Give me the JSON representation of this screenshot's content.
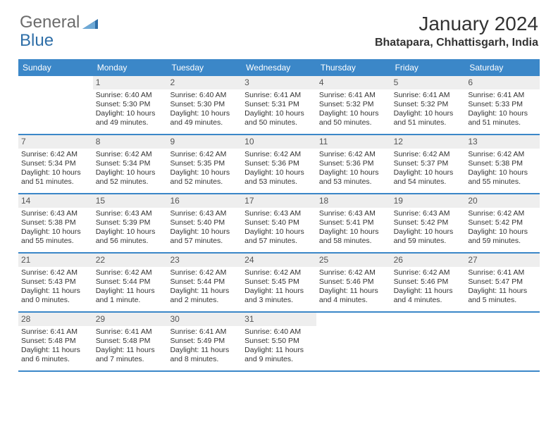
{
  "logo": {
    "text1": "General",
    "text2": "Blue"
  },
  "title": "January 2024",
  "location": "Bhatapara, Chhattisgarh, India",
  "header_bg": "#3b87c8",
  "daynames": [
    "Sunday",
    "Monday",
    "Tuesday",
    "Wednesday",
    "Thursday",
    "Friday",
    "Saturday"
  ],
  "cell_bg_daynum": "#eeeeee",
  "weeks": [
    [
      {
        "n": "",
        "lines": []
      },
      {
        "n": "1",
        "lines": [
          "Sunrise: 6:40 AM",
          "Sunset: 5:30 PM",
          "Daylight: 10 hours",
          "and 49 minutes."
        ]
      },
      {
        "n": "2",
        "lines": [
          "Sunrise: 6:40 AM",
          "Sunset: 5:30 PM",
          "Daylight: 10 hours",
          "and 49 minutes."
        ]
      },
      {
        "n": "3",
        "lines": [
          "Sunrise: 6:41 AM",
          "Sunset: 5:31 PM",
          "Daylight: 10 hours",
          "and 50 minutes."
        ]
      },
      {
        "n": "4",
        "lines": [
          "Sunrise: 6:41 AM",
          "Sunset: 5:32 PM",
          "Daylight: 10 hours",
          "and 50 minutes."
        ]
      },
      {
        "n": "5",
        "lines": [
          "Sunrise: 6:41 AM",
          "Sunset: 5:32 PM",
          "Daylight: 10 hours",
          "and 51 minutes."
        ]
      },
      {
        "n": "6",
        "lines": [
          "Sunrise: 6:41 AM",
          "Sunset: 5:33 PM",
          "Daylight: 10 hours",
          "and 51 minutes."
        ]
      }
    ],
    [
      {
        "n": "7",
        "lines": [
          "Sunrise: 6:42 AM",
          "Sunset: 5:34 PM",
          "Daylight: 10 hours",
          "and 51 minutes."
        ]
      },
      {
        "n": "8",
        "lines": [
          "Sunrise: 6:42 AM",
          "Sunset: 5:34 PM",
          "Daylight: 10 hours",
          "and 52 minutes."
        ]
      },
      {
        "n": "9",
        "lines": [
          "Sunrise: 6:42 AM",
          "Sunset: 5:35 PM",
          "Daylight: 10 hours",
          "and 52 minutes."
        ]
      },
      {
        "n": "10",
        "lines": [
          "Sunrise: 6:42 AM",
          "Sunset: 5:36 PM",
          "Daylight: 10 hours",
          "and 53 minutes."
        ]
      },
      {
        "n": "11",
        "lines": [
          "Sunrise: 6:42 AM",
          "Sunset: 5:36 PM",
          "Daylight: 10 hours",
          "and 53 minutes."
        ]
      },
      {
        "n": "12",
        "lines": [
          "Sunrise: 6:42 AM",
          "Sunset: 5:37 PM",
          "Daylight: 10 hours",
          "and 54 minutes."
        ]
      },
      {
        "n": "13",
        "lines": [
          "Sunrise: 6:42 AM",
          "Sunset: 5:38 PM",
          "Daylight: 10 hours",
          "and 55 minutes."
        ]
      }
    ],
    [
      {
        "n": "14",
        "lines": [
          "Sunrise: 6:43 AM",
          "Sunset: 5:38 PM",
          "Daylight: 10 hours",
          "and 55 minutes."
        ]
      },
      {
        "n": "15",
        "lines": [
          "Sunrise: 6:43 AM",
          "Sunset: 5:39 PM",
          "Daylight: 10 hours",
          "and 56 minutes."
        ]
      },
      {
        "n": "16",
        "lines": [
          "Sunrise: 6:43 AM",
          "Sunset: 5:40 PM",
          "Daylight: 10 hours",
          "and 57 minutes."
        ]
      },
      {
        "n": "17",
        "lines": [
          "Sunrise: 6:43 AM",
          "Sunset: 5:40 PM",
          "Daylight: 10 hours",
          "and 57 minutes."
        ]
      },
      {
        "n": "18",
        "lines": [
          "Sunrise: 6:43 AM",
          "Sunset: 5:41 PM",
          "Daylight: 10 hours",
          "and 58 minutes."
        ]
      },
      {
        "n": "19",
        "lines": [
          "Sunrise: 6:43 AM",
          "Sunset: 5:42 PM",
          "Daylight: 10 hours",
          "and 59 minutes."
        ]
      },
      {
        "n": "20",
        "lines": [
          "Sunrise: 6:42 AM",
          "Sunset: 5:42 PM",
          "Daylight: 10 hours",
          "and 59 minutes."
        ]
      }
    ],
    [
      {
        "n": "21",
        "lines": [
          "Sunrise: 6:42 AM",
          "Sunset: 5:43 PM",
          "Daylight: 11 hours",
          "and 0 minutes."
        ]
      },
      {
        "n": "22",
        "lines": [
          "Sunrise: 6:42 AM",
          "Sunset: 5:44 PM",
          "Daylight: 11 hours",
          "and 1 minute."
        ]
      },
      {
        "n": "23",
        "lines": [
          "Sunrise: 6:42 AM",
          "Sunset: 5:44 PM",
          "Daylight: 11 hours",
          "and 2 minutes."
        ]
      },
      {
        "n": "24",
        "lines": [
          "Sunrise: 6:42 AM",
          "Sunset: 5:45 PM",
          "Daylight: 11 hours",
          "and 3 minutes."
        ]
      },
      {
        "n": "25",
        "lines": [
          "Sunrise: 6:42 AM",
          "Sunset: 5:46 PM",
          "Daylight: 11 hours",
          "and 4 minutes."
        ]
      },
      {
        "n": "26",
        "lines": [
          "Sunrise: 6:42 AM",
          "Sunset: 5:46 PM",
          "Daylight: 11 hours",
          "and 4 minutes."
        ]
      },
      {
        "n": "27",
        "lines": [
          "Sunrise: 6:41 AM",
          "Sunset: 5:47 PM",
          "Daylight: 11 hours",
          "and 5 minutes."
        ]
      }
    ],
    [
      {
        "n": "28",
        "lines": [
          "Sunrise: 6:41 AM",
          "Sunset: 5:48 PM",
          "Daylight: 11 hours",
          "and 6 minutes."
        ]
      },
      {
        "n": "29",
        "lines": [
          "Sunrise: 6:41 AM",
          "Sunset: 5:48 PM",
          "Daylight: 11 hours",
          "and 7 minutes."
        ]
      },
      {
        "n": "30",
        "lines": [
          "Sunrise: 6:41 AM",
          "Sunset: 5:49 PM",
          "Daylight: 11 hours",
          "and 8 minutes."
        ]
      },
      {
        "n": "31",
        "lines": [
          "Sunrise: 6:40 AM",
          "Sunset: 5:50 PM",
          "Daylight: 11 hours",
          "and 9 minutes."
        ]
      },
      {
        "n": "",
        "lines": []
      },
      {
        "n": "",
        "lines": []
      },
      {
        "n": "",
        "lines": []
      }
    ]
  ]
}
